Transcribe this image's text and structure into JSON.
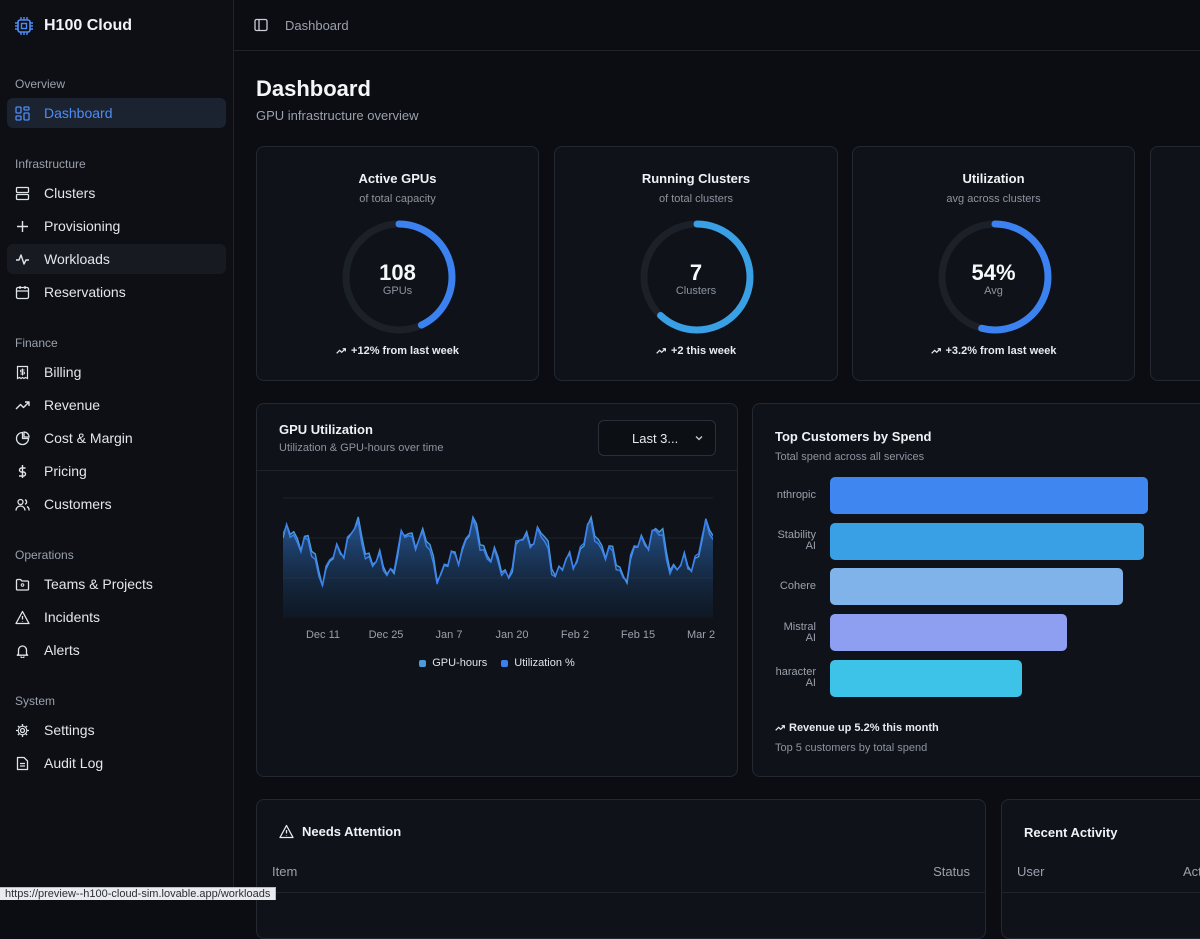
{
  "app": {
    "name": "H100 Cloud"
  },
  "sidebar": {
    "sections": {
      "overview": "Overview",
      "infrastructure": "Infrastructure",
      "finance": "Finance",
      "operations": "Operations",
      "system": "System"
    },
    "items": {
      "dashboard": "Dashboard",
      "clusters": "Clusters",
      "provisioning": "Provisioning",
      "workloads": "Workloads",
      "reservations": "Reservations",
      "billing": "Billing",
      "revenue": "Revenue",
      "cost_margin": "Cost & Margin",
      "pricing": "Pricing",
      "customers": "Customers",
      "teams_projects": "Teams & Projects",
      "incidents": "Incidents",
      "alerts": "Alerts",
      "settings": "Settings",
      "audit_log": "Audit Log"
    },
    "active": "dashboard",
    "hovered": "workloads"
  },
  "header": {
    "breadcrumb": "Dashboard"
  },
  "page": {
    "title": "Dashboard",
    "subtitle": "GPU infrastructure overview"
  },
  "stats": [
    {
      "title": "Active GPUs",
      "sub": "of total capacity",
      "value": "108",
      "unit": "GPUs",
      "fraction": 0.43,
      "trend": "+12% from last week"
    },
    {
      "title": "Running Clusters",
      "sub": "of total clusters",
      "value": "7",
      "unit": "Clusters",
      "fraction": 0.62,
      "trend": "+2 this week"
    },
    {
      "title": "Utilization",
      "sub": "avg across clusters",
      "value": "54%",
      "unit": "Avg",
      "fraction": 0.54,
      "trend": "+3.2% from last week"
    }
  ],
  "gpu_util": {
    "title": "GPU Utilization",
    "subtitle": "Utilization & GPU-hours over time",
    "range": "Last 3...",
    "colors": {
      "gpu_hours": "#4a9bd8",
      "utilization": "#3b7ff0"
    }
  },
  "customers_panel": {
    "title": "Top Customers by Spend",
    "subtitle": "Total spend across all services",
    "trend": "Revenue up 5.2% this month",
    "footnote": "Top 5 customers by total spend"
  },
  "attention": {
    "title": "Needs Attention",
    "col_item": "Item",
    "col_status": "Status"
  },
  "activity": {
    "title": "Recent Activity",
    "col_user": "User",
    "col_action": "Act"
  },
  "status_url": "https://preview--h100-cloud-sim.lovable.app/workloads",
  "chart_data": [
    {
      "type": "area",
      "title": "GPU Utilization",
      "x": [
        "Dec 11",
        "Dec 25",
        "Jan 7",
        "Jan 20",
        "Feb 2",
        "Feb 15",
        "Mar 2"
      ],
      "series": [
        {
          "name": "GPU-hours",
          "color": "#4a9bd8"
        },
        {
          "name": "Utilization %",
          "color": "#3b7ff0"
        }
      ],
      "grid": true,
      "legend": "bottom"
    },
    {
      "type": "bar",
      "orientation": "horizontal",
      "title": "Top Customers by Spend",
      "categories": [
        "Anthropic",
        "Stability AI",
        "Cohere",
        "Mistral AI",
        "Character AI"
      ],
      "category_lines": [
        [
          "nthropic"
        ],
        [
          "Stability",
          "AI"
        ],
        [
          "Cohere"
        ],
        [
          "Mistral",
          "AI"
        ],
        [
          "haracter",
          "AI"
        ]
      ],
      "values": [
        100,
        98.8,
        92,
        74.5,
        60.5
      ],
      "colors": [
        "#3f86f0",
        "#3aa0e6",
        "#7fb3ea",
        "#8e9ef0",
        "#3ec3e8"
      ]
    }
  ]
}
